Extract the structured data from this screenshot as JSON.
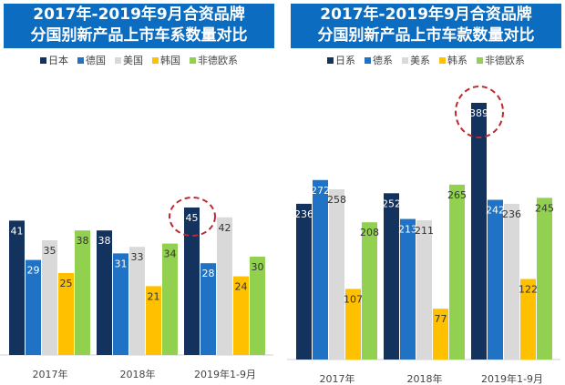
{
  "colors": [
    "#13325e",
    "#1f72c4",
    "#d9d9d9",
    "#ffc000",
    "#92d050"
  ],
  "chart_data": [
    {
      "type": "bar",
      "title": "2017年-2019年9月合资品牌分国别新产品上市车系数量对比",
      "title_lines": [
        "2017年-2019年9月合资品牌",
        "分国别新产品上市车系数量对比"
      ],
      "categories": [
        "2017年",
        "2018年",
        "2019年1-9月"
      ],
      "series": [
        {
          "name": "日本",
          "values": [
            41,
            38,
            45
          ]
        },
        {
          "name": "德国",
          "values": [
            29,
            31,
            28
          ]
        },
        {
          "name": "美国",
          "values": [
            35,
            33,
            42
          ]
        },
        {
          "name": "韩国",
          "values": [
            25,
            21,
            24
          ]
        },
        {
          "name": "非德欧系",
          "values": [
            38,
            34,
            30
          ]
        }
      ],
      "highlight": {
        "series": "日本",
        "category": "2019年1-9月"
      },
      "legend": "top",
      "grid": false
    },
    {
      "type": "bar",
      "title": "2017年-2019年9月合资品牌分国别新产品上市车款数量对比",
      "title_lines": [
        "2017年-2019年9月合资品牌",
        "分国别新产品上市车款数量对比"
      ],
      "categories": [
        "2017年",
        "2018年",
        "2019年1-9月"
      ],
      "series": [
        {
          "name": "日系",
          "values": [
            236,
            252,
            389
          ]
        },
        {
          "name": "德系",
          "values": [
            272,
            213,
            242
          ]
        },
        {
          "name": "美系",
          "values": [
            258,
            211,
            236
          ]
        },
        {
          "name": "韩系",
          "values": [
            107,
            77,
            122
          ]
        },
        {
          "name": "非德欧系",
          "values": [
            208,
            265,
            245
          ]
        }
      ],
      "highlight": {
        "series": "日系",
        "category": "2019年1-9月"
      },
      "legend": "top",
      "grid": false
    }
  ]
}
